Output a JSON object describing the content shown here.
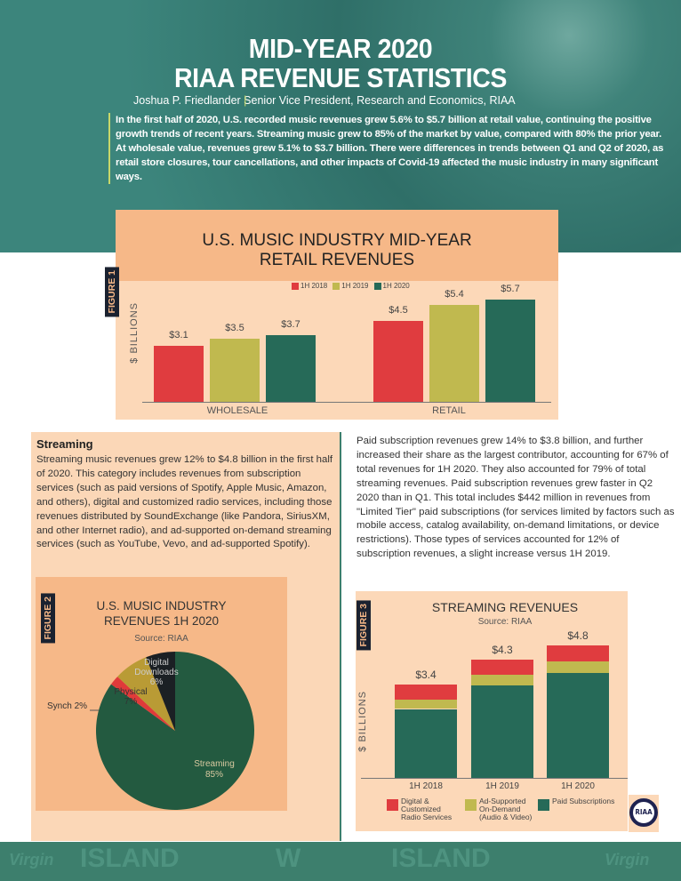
{
  "header": {
    "title_line1": "MID-YEAR 2020",
    "title_line2": "RIAA REVENUE STATISTICS",
    "author": "Joshua P. Friedlander",
    "separator": "|",
    "author_role": "Senior Vice President, Research and Economics, RIAA",
    "intro": "In the first half of 2020, U.S. recorded music revenues grew 5.6% to $5.7 billion at retail value, continuing the positive growth trends of recent years. Streaming music grew to 85% of the market by value, compared with 80% the prior year. At wholesale value, revenues grew 5.1% to $3.7 billion. There were differences in trends between Q1 and Q2 of 2020, as retail store closures, tour cancellations, and other impacts of Covid-19 affected the music industry in many significant ways."
  },
  "streaming_section": {
    "heading": "Streaming",
    "body": "Streaming music revenues grew 12% to $4.8 billion in the first half of 2020. This category includes revenues from subscription services (such as paid versions of Spotify, Apple Music, Amazon, and others), digital and customized radio services, including those revenues distributed by SoundExchange (like Pandora, SiriusXM, and other Internet radio), and ad-supported on-demand streaming services (such as YouTube, Vevo, and ad-supported Spotify).",
    "right_body": "Paid subscription revenues grew 14% to $3.8 billion, and further increased their share as the largest contributor, accounting for 67% of total revenues for 1H 2020. They also accounted for 79% of total streaming revenues. Paid subscription revenues grew faster in Q2 2020 than in Q1. This total includes $442 million in revenues from \"Limited Tier\" paid subscriptions (for services limited by factors such as mobile access, catalog availability, on-demand limitations, or device restrictions). Those types of services accounted for 12% of subscription revenues, a slight increase versus 1H 2019."
  },
  "colors": {
    "red": "#e03c3f",
    "olive": "#c0b94f",
    "green": "#266a58",
    "teal": "#3f837a",
    "pie_stream": "#235a40",
    "pie_synch": "#e03a3a",
    "pie_physical": "#b99b35",
    "pie_downloads": "#1b2024"
  },
  "chart_data": [
    {
      "type": "bar",
      "figure_label": "FIGURE 1",
      "title_line1": "U.S. MUSIC INDUSTRY MID-YEAR",
      "title_line2": "RETAIL REVENUES",
      "ylabel": "$ BILLIONS",
      "categories": [
        "WHOLESALE",
        "RETAIL"
      ],
      "series": [
        {
          "name": "1H 2018",
          "values": [
            3.1,
            4.5
          ],
          "labels": [
            "$3.1",
            "$4.5"
          ]
        },
        {
          "name": "1H 2019",
          "values": [
            3.5,
            5.4
          ],
          "labels": [
            "$3.5",
            "$5.4"
          ]
        },
        {
          "name": "1H 2020",
          "values": [
            3.7,
            5.7
          ],
          "labels": [
            "$3.7",
            "$5.7"
          ]
        }
      ],
      "legend": "top"
    },
    {
      "type": "pie",
      "figure_label": "FIGURE 2",
      "title_line1": "U.S. MUSIC INDUSTRY",
      "title_line2": "REVENUES 1H 2020",
      "source": "Source: RIAA",
      "slices": [
        {
          "name": "Streaming",
          "value": 85,
          "label": "85%"
        },
        {
          "name": "Synch",
          "value": 2,
          "label": "Synch 2%"
        },
        {
          "name": "Physical",
          "value": 7,
          "label": "7%"
        },
        {
          "name": "Digital Downloads",
          "value": 6,
          "label": "6%"
        }
      ]
    },
    {
      "type": "bar",
      "stacked": true,
      "figure_label": "FIGURE 3",
      "title": "STREAMING REVENUES",
      "source": "Source: RIAA",
      "ylabel": "$ BILLIONS",
      "categories": [
        "1H 2018",
        "1H 2019",
        "1H 2020"
      ],
      "totals": [
        "$3.4",
        "$4.3",
        "$4.8"
      ],
      "series": [
        {
          "name": "Paid Subscriptions",
          "values": [
            2.5,
            3.35,
            3.8
          ]
        },
        {
          "name": "Ad-Supported On-Demand (Audio & Video)",
          "values": [
            0.35,
            0.4,
            0.42
          ]
        },
        {
          "name": "Digital & Customized Radio Services",
          "values": [
            0.55,
            0.55,
            0.58
          ]
        }
      ],
      "legend": "bottom"
    }
  ],
  "logo": {
    "text": "RIAA"
  },
  "footer_logos": [
    "Virgin",
    "ISLAND",
    "W",
    "ISLAND",
    "Virgin"
  ]
}
